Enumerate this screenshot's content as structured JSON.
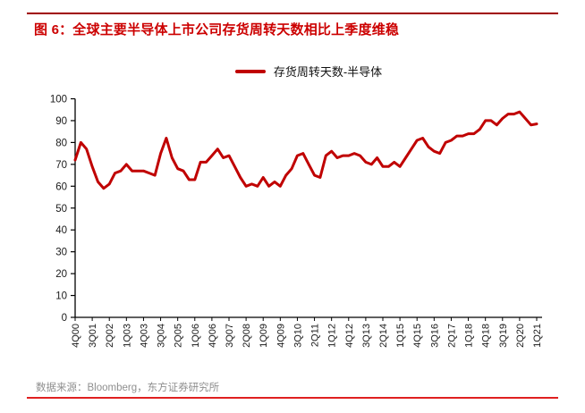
{
  "title": "图 6：全球主要半导体上市公司存货周转天数相比上季度维稳",
  "legend": {
    "label": "存货周转天数-半导体"
  },
  "footer": {
    "source_text": "数据来源：Bloomberg，东方证券研究所"
  },
  "colors": {
    "series_red": "#c00000",
    "title_red": "#cc0000",
    "top_rule_red": "#a00000",
    "bottom_rule_red": "#e02020",
    "footer_gray": "#8f8f8f",
    "axis_line": "#000000",
    "tick_text": "#1a1a1a"
  },
  "chart_data": {
    "type": "line",
    "title": "存货周转天数-半导体",
    "xlabel": "",
    "ylabel": "",
    "ylim": [
      0,
      100
    ],
    "y_ticks": [
      0,
      10,
      20,
      30,
      40,
      50,
      60,
      70,
      80,
      90,
      100
    ],
    "x_tick_every": 3,
    "grid": false,
    "legend_position": "top-center",
    "x": [
      "4Q00",
      "1Q01",
      "2Q01",
      "3Q01",
      "4Q01",
      "1Q02",
      "2Q02",
      "3Q02",
      "4Q02",
      "1Q03",
      "2Q03",
      "3Q03",
      "4Q03",
      "1Q04",
      "2Q04",
      "3Q04",
      "4Q04",
      "1Q05",
      "2Q05",
      "3Q05",
      "4Q05",
      "1Q06",
      "2Q06",
      "3Q06",
      "4Q06",
      "1Q07",
      "2Q07",
      "3Q07",
      "4Q07",
      "1Q08",
      "2Q08",
      "3Q08",
      "4Q08",
      "1Q09",
      "2Q09",
      "3Q09",
      "4Q09",
      "1Q10",
      "2Q10",
      "3Q10",
      "4Q10",
      "1Q11",
      "2Q11",
      "3Q11",
      "4Q11",
      "1Q12",
      "2Q12",
      "3Q12",
      "4Q12",
      "1Q13",
      "2Q13",
      "3Q13",
      "4Q13",
      "1Q14",
      "2Q14",
      "3Q14",
      "4Q14",
      "1Q15",
      "2Q15",
      "3Q15",
      "4Q15",
      "1Q16",
      "2Q16",
      "3Q16",
      "4Q16",
      "1Q17",
      "2Q17",
      "3Q17",
      "4Q17",
      "1Q18",
      "2Q18",
      "3Q18",
      "4Q18",
      "1Q19",
      "2Q19",
      "3Q19",
      "4Q19",
      "1Q20",
      "2Q20",
      "3Q20",
      "4Q20",
      "1Q21"
    ],
    "series": [
      {
        "name": "存货周转天数-半导体",
        "color": "#c00000",
        "values": [
          72,
          80,
          77,
          69,
          62,
          59,
          61,
          66,
          67,
          70,
          67,
          67,
          67,
          66,
          65,
          75,
          82,
          73,
          68,
          67,
          63,
          63,
          71,
          71,
          74,
          77,
          73,
          74,
          69,
          64,
          60,
          61,
          60,
          64,
          60,
          62,
          60,
          65,
          68,
          74,
          75,
          70,
          65,
          64,
          74,
          76,
          73,
          74,
          74,
          75,
          74,
          71,
          70,
          73,
          69,
          69,
          71,
          69,
          73,
          77,
          81,
          82,
          78,
          76,
          75,
          80,
          81,
          83,
          83,
          84,
          84,
          86,
          90,
          90,
          88,
          91,
          93,
          93,
          94,
          91,
          88,
          88.5
        ]
      }
    ]
  }
}
